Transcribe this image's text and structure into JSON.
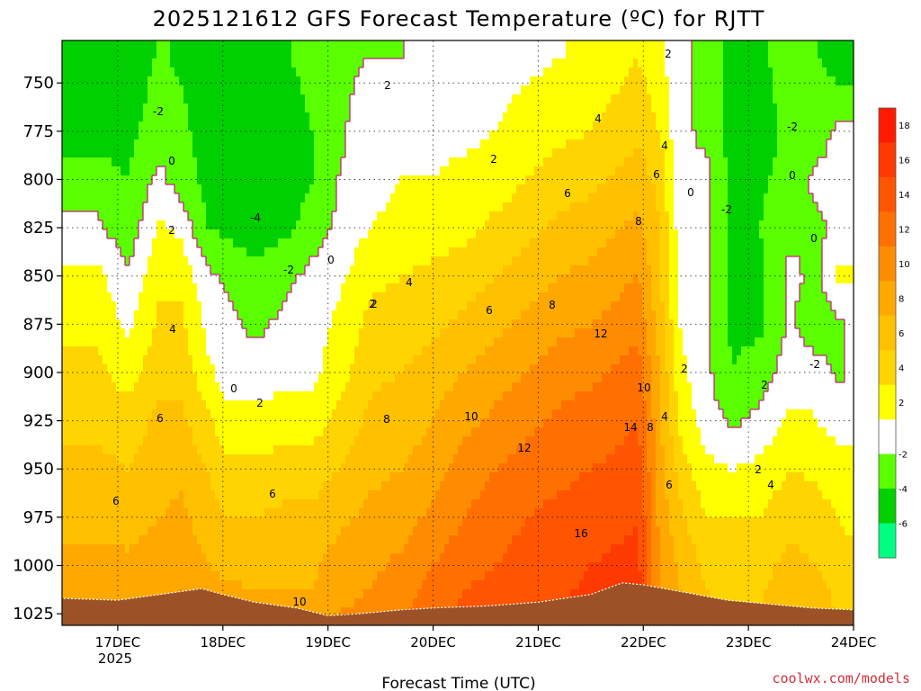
{
  "chart_data": {
    "type": "heatmap",
    "title": "2025121612 GFS Forecast Temperature (ºC) for RJTT",
    "xlabel": "Forecast Time (UTC)",
    "credit": "coolwx.com/models",
    "y_ticks": [
      "750",
      "775",
      "800",
      "825",
      "850",
      "875",
      "900",
      "925",
      "950",
      "975",
      "1000",
      "1025"
    ],
    "y_values": [
      750,
      775,
      800,
      825,
      850,
      875,
      900,
      925,
      950,
      975,
      1000,
      1025
    ],
    "x_ticks": [
      "17DEC",
      "18DEC",
      "19DEC",
      "20DEC",
      "21DEC",
      "22DEC",
      "23DEC",
      "24DEC"
    ],
    "x_values": [
      0,
      1,
      2,
      3,
      4,
      5,
      6,
      7
    ],
    "x_year": "2025",
    "x_range": [
      -0.53,
      7
    ],
    "y_range": [
      728,
      1031
    ],
    "colorbar_ticks": [
      "18",
      "16",
      "14",
      "12",
      "10",
      "8",
      "6",
      "4",
      "2",
      "-2",
      "-4",
      "-6"
    ],
    "contour_labels": [
      "-2",
      "0",
      "-4",
      "-2",
      "0",
      "2",
      "2",
      "2",
      "4",
      "4",
      "6",
      "6",
      "6",
      "8",
      "8",
      "10",
      "10",
      "12",
      "12",
      "14",
      "16",
      "2",
      "0",
      "-2",
      "-2",
      "0",
      "0",
      "2",
      "4",
      "6",
      "8",
      "10",
      "4",
      "2",
      "-2",
      "2",
      "6",
      "4",
      "2",
      "8",
      "2",
      "0",
      "4",
      "6",
      "2",
      "6"
    ],
    "colors": {
      "m6": "#00ff80",
      "m4": "#00d000",
      "m2": "#5aff00",
      "n": "#ffffff",
      "p2": "#ffff00",
      "p4": "#ffd400",
      "p6": "#ffc000",
      "p8": "#ffa800",
      "p10": "#ff8c00",
      "p12": "#ff7000",
      "p14": "#ff5500",
      "p16": "#ff3a00",
      "p18": "#ff1a00",
      "terrain": "#9c5226",
      "zero_line": "#c8247a",
      "credit": "#d2303a"
    },
    "profiles": [
      {
        "x": -0.53,
        "t": [
          -2.5,
          -2.5,
          -1.5,
          0.5,
          2.5,
          3.5,
          4.5,
          5.5,
          6.5,
          7.5,
          8.5,
          9.0
        ]
      },
      {
        "x": -0.2,
        "t": [
          -3.0,
          -2.5,
          -1.5,
          0.5,
          2.5,
          3.5,
          4.5,
          5.5,
          6.5,
          7.5,
          8.5,
          9.0
        ]
      },
      {
        "x": 0.1,
        "t": [
          -3.0,
          -2.5,
          -2.0,
          -1.5,
          0.5,
          1.5,
          3.0,
          5.0,
          6.0,
          7.0,
          8.5,
          9.5
        ]
      },
      {
        "x": 0.4,
        "t": [
          -1.5,
          -1.0,
          0.5,
          2.5,
          3.5,
          4.5,
          5.5,
          6.5,
          7.0,
          8.0,
          9.0,
          9.5
        ]
      },
      {
        "x": 0.6,
        "t": [
          -2.0,
          -1.5,
          -1.0,
          1.5,
          3.5,
          4.5,
          5.5,
          6.5,
          7.5,
          8.5,
          9.5,
          10.5
        ]
      },
      {
        "x": 0.85,
        "t": [
          -3.0,
          -3.0,
          -2.5,
          -2.0,
          0.5,
          1.5,
          2.5,
          4.5,
          6.0,
          7.0,
          8.0,
          9.0
        ]
      },
      {
        "x": 1.05,
        "t": [
          -3.0,
          -3.0,
          -3.0,
          -2.5,
          -0.5,
          0.5,
          1.0,
          2.5,
          4.5,
          6.0,
          7.5,
          9.0
        ]
      },
      {
        "x": 1.3,
        "t": [
          -3.0,
          -3.5,
          -4.0,
          -3.0,
          -1.5,
          -0.5,
          1.0,
          2.5,
          4.5,
          6.0,
          7.5,
          8.5
        ]
      },
      {
        "x": 1.6,
        "t": [
          -2.5,
          -3.0,
          -3.5,
          -2.5,
          -0.5,
          0.5,
          1.5,
          3.0,
          5.0,
          6.5,
          7.5,
          8.5
        ]
      },
      {
        "x": 1.85,
        "t": [
          -1.5,
          -2.0,
          -2.0,
          -1.0,
          0.5,
          1.0,
          1.5,
          3.0,
          5.0,
          6.5,
          7.5,
          8.5
        ]
      },
      {
        "x": 2.1,
        "t": [
          -0.5,
          -0.5,
          0.0,
          0.5,
          1.5,
          2.5,
          3.0,
          4.5,
          6.0,
          7.5,
          9.0,
          10.0
        ]
      },
      {
        "x": 2.4,
        "t": [
          0.5,
          1.5,
          1.5,
          2.0,
          3.5,
          4.5,
          5.5,
          6.5,
          7.5,
          8.5,
          9.5,
          10.5
        ]
      },
      {
        "x": 2.7,
        "t": [
          0.5,
          1.5,
          2.0,
          2.5,
          4.0,
          5.0,
          6.0,
          7.0,
          8.0,
          9.0,
          10.5,
          11.5
        ]
      },
      {
        "x": 3.0,
        "t": [
          1.0,
          1.5,
          2.0,
          3.0,
          4.5,
          5.5,
          7.0,
          8.0,
          9.0,
          10.5,
          12.0,
          13.5
        ]
      },
      {
        "x": 3.3,
        "t": [
          1.0,
          1.5,
          2.5,
          3.5,
          5.0,
          6.5,
          8.0,
          9.5,
          11.0,
          12.0,
          13.5,
          14.5
        ]
      },
      {
        "x": 3.6,
        "t": [
          1.5,
          2.0,
          3.0,
          4.5,
          6.0,
          7.5,
          9.0,
          10.5,
          12.0,
          13.0,
          14.0,
          15.0
        ]
      },
      {
        "x": 3.9,
        "t": [
          2.0,
          3.0,
          4.0,
          5.5,
          7.0,
          8.5,
          10.0,
          11.5,
          13.0,
          14.0,
          15.0,
          15.5
        ]
      },
      {
        "x": 4.2,
        "t": [
          2.5,
          3.5,
          5.0,
          6.5,
          8.0,
          9.5,
          11.0,
          12.5,
          13.5,
          14.5,
          15.5,
          16.0
        ]
      },
      {
        "x": 4.5,
        "t": [
          3.0,
          4.0,
          5.5,
          7.0,
          8.5,
          10.0,
          11.5,
          13.0,
          14.0,
          15.0,
          16.0,
          16.5
        ]
      },
      {
        "x": 4.8,
        "t": [
          4.0,
          5.0,
          6.5,
          8.0,
          9.5,
          11.0,
          12.5,
          13.5,
          14.5,
          15.5,
          16.5,
          17.0
        ]
      },
      {
        "x": 4.95,
        "t": [
          4.5,
          5.5,
          7.0,
          8.5,
          10.0,
          11.5,
          13.0,
          14.0,
          15.0,
          16.0,
          16.5,
          17.0
        ]
      },
      {
        "x": 5.15,
        "t": [
          3.0,
          4.0,
          5.5,
          6.0,
          6.5,
          7.0,
          8.0,
          8.5,
          9.0,
          9.5,
          10.0,
          10.5
        ]
      },
      {
        "x": 5.35,
        "t": [
          0.5,
          0.5,
          0.5,
          1.0,
          1.5,
          2.0,
          2.5,
          3.5,
          5.0,
          6.5,
          7.5,
          8.5
        ]
      },
      {
        "x": 5.6,
        "t": [
          -0.5,
          -0.5,
          0.5,
          0.5,
          0.5,
          0.5,
          0.5,
          1.0,
          2.5,
          4.0,
          5.5,
          6.5
        ]
      },
      {
        "x": 5.85,
        "t": [
          -3.0,
          -3.0,
          -2.5,
          -2.5,
          -2.5,
          -2.5,
          -2.0,
          -0.5,
          2.0,
          4.0,
          5.0,
          6.0
        ]
      },
      {
        "x": 6.1,
        "t": [
          -3.0,
          -3.0,
          -2.5,
          -2.0,
          -2.5,
          -2.5,
          -1.0,
          0.5,
          2.5,
          4.0,
          5.5,
          6.0
        ]
      },
      {
        "x": 6.4,
        "t": [
          -0.5,
          -1.5,
          -1.0,
          -0.5,
          0.5,
          0.5,
          1.0,
          2.5,
          4.0,
          5.5,
          6.5,
          7.0
        ]
      },
      {
        "x": 6.65,
        "t": [
          -1.5,
          -1.0,
          0.5,
          -0.5,
          -0.5,
          -2.0,
          1.5,
          2.0,
          3.5,
          5.0,
          6.0,
          7.0
        ]
      },
      {
        "x": 6.85,
        "t": [
          -2.0,
          0.5,
          0.5,
          0.5,
          2.5,
          -0.5,
          -0.5,
          1.5,
          2.5,
          4.0,
          5.0,
          6.0
        ]
      },
      {
        "x": 7.0,
        "t": [
          -2.0,
          0.5,
          0.5,
          0.5,
          2.5,
          0.5,
          0.5,
          1.5,
          2.5,
          3.5,
          4.5,
          5.5
        ]
      }
    ],
    "surface_pressure": [
      {
        "x": -0.53,
        "p": 1017
      },
      {
        "x": 0.0,
        "p": 1018
      },
      {
        "x": 0.4,
        "p": 1015
      },
      {
        "x": 0.8,
        "p": 1012
      },
      {
        "x": 1.0,
        "p": 1015
      },
      {
        "x": 1.3,
        "p": 1019
      },
      {
        "x": 1.7,
        "p": 1022
      },
      {
        "x": 2.0,
        "p": 1026
      },
      {
        "x": 2.3,
        "p": 1025
      },
      {
        "x": 2.7,
        "p": 1023
      },
      {
        "x": 3.0,
        "p": 1022
      },
      {
        "x": 3.5,
        "p": 1021
      },
      {
        "x": 4.0,
        "p": 1019
      },
      {
        "x": 4.5,
        "p": 1015
      },
      {
        "x": 4.8,
        "p": 1009
      },
      {
        "x": 5.0,
        "p": 1010
      },
      {
        "x": 5.4,
        "p": 1014
      },
      {
        "x": 5.8,
        "p": 1018
      },
      {
        "x": 6.2,
        "p": 1020
      },
      {
        "x": 6.6,
        "p": 1022
      },
      {
        "x": 7.0,
        "p": 1023
      }
    ]
  }
}
